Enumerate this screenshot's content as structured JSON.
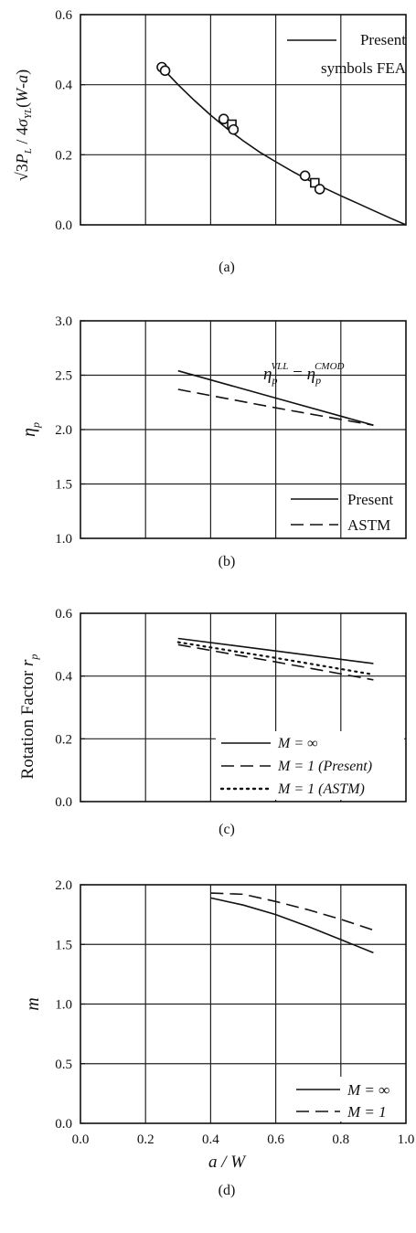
{
  "chart_data": [
    {
      "id": "a",
      "type": "line",
      "caption": "(a)",
      "ylabel": "√3P_L / 4σ_YL(W-a)",
      "xlim": [
        0.0,
        1.0
      ],
      "ylim": [
        0.0,
        0.6
      ],
      "xticks": [
        0.0,
        0.2,
        0.4,
        0.6,
        0.8,
        1.0
      ],
      "yticks": [
        0.0,
        0.2,
        0.4,
        0.6
      ],
      "ytick_labels": [
        "0.0",
        "0.2",
        "0.4",
        "0.6"
      ],
      "show_xtick_labels": false,
      "grid": true,
      "series": [
        {
          "name": "Present",
          "style": "solid",
          "x": [
            0.25,
            0.3,
            0.35,
            0.4,
            0.45,
            0.5,
            0.55,
            0.6,
            0.65,
            0.7,
            0.75,
            0.8,
            0.85,
            0.9,
            0.95,
            1.0
          ],
          "y": [
            0.449,
            0.4,
            0.355,
            0.313,
            0.275,
            0.24,
            0.208,
            0.18,
            0.153,
            0.128,
            0.105,
            0.083,
            0.062,
            0.041,
            0.02,
            0.0
          ]
        }
      ],
      "markers": [
        {
          "shape": "circle",
          "x": 0.25,
          "y": 0.45
        },
        {
          "shape": "circle",
          "x": 0.26,
          "y": 0.44
        },
        {
          "shape": "circle",
          "x": 0.44,
          "y": 0.302
        },
        {
          "shape": "square",
          "x": 0.465,
          "y": 0.287
        },
        {
          "shape": "circle",
          "x": 0.47,
          "y": 0.272
        },
        {
          "shape": "circle",
          "x": 0.69,
          "y": 0.14
        },
        {
          "shape": "square",
          "x": 0.72,
          "y": 0.12
        },
        {
          "shape": "circle",
          "x": 0.735,
          "y": 0.102
        }
      ],
      "legend": {
        "position": "top-right",
        "entries": [
          {
            "style": "solid",
            "label": "Present"
          },
          {
            "style": "text",
            "label": "symbols  FEA"
          }
        ]
      }
    },
    {
      "id": "b",
      "type": "line",
      "caption": "(b)",
      "ylabel": "η_p",
      "xlim": [
        0.0,
        1.0
      ],
      "ylim": [
        1.0,
        3.0
      ],
      "xticks": [
        0.0,
        0.2,
        0.4,
        0.6,
        0.8,
        1.0
      ],
      "yticks": [
        1.0,
        1.5,
        2.0,
        2.5,
        3.0
      ],
      "ytick_labels": [
        "1.0",
        "1.5",
        "2.0",
        "2.5",
        "3.0"
      ],
      "show_xtick_labels": false,
      "grid": true,
      "series": [
        {
          "name": "Present",
          "style": "solid",
          "x": [
            0.3,
            0.6,
            0.9
          ],
          "y": [
            2.54,
            2.29,
            2.04
          ]
        },
        {
          "name": "ASTM",
          "style": "dashed",
          "x": [
            0.3,
            0.6,
            0.9
          ],
          "y": [
            2.37,
            2.2,
            2.04
          ]
        }
      ],
      "annotation": {
        "text": "η_p^VLL = η_p^CMOD",
        "x": 0.68,
        "y": 2.63
      },
      "legend": {
        "position": "bottom-right",
        "entries": [
          {
            "style": "solid",
            "label": "Present"
          },
          {
            "style": "dashed",
            "label": "ASTM"
          }
        ]
      }
    },
    {
      "id": "c",
      "type": "line",
      "caption": "(c)",
      "ylabel": "Rotation Factor r_p",
      "xlim": [
        0.0,
        1.0
      ],
      "ylim": [
        0.0,
        0.6
      ],
      "xticks": [
        0.0,
        0.2,
        0.4,
        0.6,
        0.8,
        1.0
      ],
      "yticks": [
        0.0,
        0.2,
        0.4,
        0.6
      ],
      "ytick_labels": [
        "0.0",
        "0.2",
        "0.4",
        "0.6"
      ],
      "show_xtick_labels": false,
      "grid": true,
      "series": [
        {
          "name": "M = ∞",
          "style": "solid",
          "x": [
            0.3,
            0.6,
            0.9
          ],
          "y": [
            0.52,
            0.48,
            0.44
          ]
        },
        {
          "name": "M = 1 (Present)",
          "style": "dashed",
          "x": [
            0.3,
            0.6,
            0.9
          ],
          "y": [
            0.5,
            0.445,
            0.388
          ]
        },
        {
          "name": "M = 1 (ASTM)",
          "style": "dotted",
          "x": [
            0.3,
            0.6,
            0.9
          ],
          "y": [
            0.508,
            0.458,
            0.405
          ]
        }
      ],
      "legend": {
        "position": "bottom-right",
        "entries": [
          {
            "style": "solid",
            "label": "M = ∞"
          },
          {
            "style": "dashed",
            "label": "M = 1 (Present)"
          },
          {
            "style": "dotted",
            "label": "M = 1 (ASTM)"
          }
        ]
      }
    },
    {
      "id": "d",
      "type": "line",
      "caption": "(d)",
      "ylabel": "m",
      "xlabel": "a / W",
      "xlim": [
        0.0,
        1.0
      ],
      "ylim": [
        0.0,
        2.0
      ],
      "xticks": [
        0.0,
        0.2,
        0.4,
        0.6,
        0.8,
        1.0
      ],
      "xtick_labels": [
        "0.0",
        "0.2",
        "0.4",
        "0.6",
        "0.8",
        "1.0"
      ],
      "yticks": [
        0.0,
        0.5,
        1.0,
        1.5,
        2.0
      ],
      "ytick_labels": [
        "0.0",
        "0.5",
        "1.0",
        "1.5",
        "2.0"
      ],
      "show_xtick_labels": true,
      "grid": true,
      "series": [
        {
          "name": "M = ∞",
          "style": "solid",
          "x": [
            0.4,
            0.5,
            0.6,
            0.7,
            0.8,
            0.9
          ],
          "y": [
            1.89,
            1.83,
            1.75,
            1.65,
            1.54,
            1.43
          ]
        },
        {
          "name": "M = 1",
          "style": "dashed",
          "x": [
            0.4,
            0.5,
            0.6,
            0.7,
            0.8,
            0.9
          ],
          "y": [
            1.93,
            1.92,
            1.86,
            1.79,
            1.71,
            1.62
          ]
        }
      ],
      "legend": {
        "position": "bottom-right",
        "entries": [
          {
            "style": "solid",
            "label": "M = ∞"
          },
          {
            "style": "dashed",
            "label": "M = 1"
          }
        ]
      }
    }
  ]
}
